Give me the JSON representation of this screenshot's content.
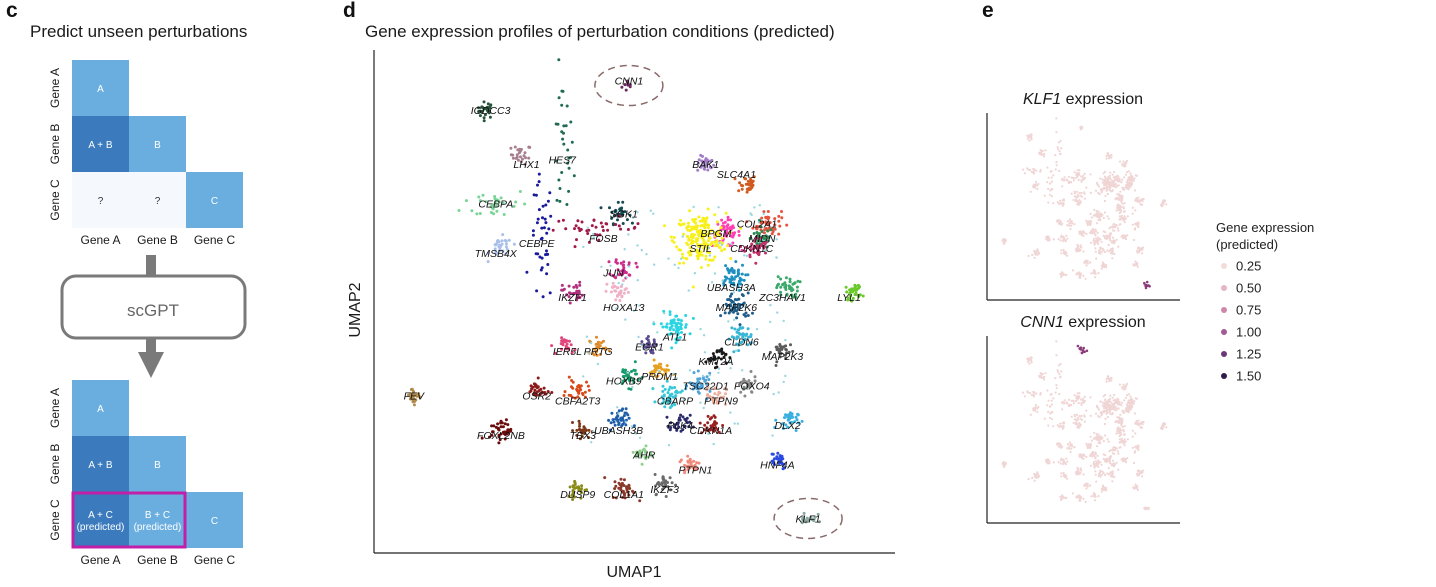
{
  "panels": {
    "c": {
      "letter": "c",
      "title": "Predict unseen perturbations",
      "model_label": "scGPT",
      "colors": {
        "dark": "#3b7bbd",
        "light": "#6aaee0",
        "empty": "#f5f9fe",
        "highlight": "#c21fa8"
      },
      "top_grid": {
        "row_labels": [
          "Gene A",
          "Gene B",
          "Gene C"
        ],
        "col_labels": [
          "Gene A",
          "Gene B",
          "Gene C"
        ],
        "cells": [
          {
            "row": 0,
            "col": 0,
            "text": "A",
            "style": "light"
          },
          {
            "row": 1,
            "col": 0,
            "text": "A + B",
            "style": "dark"
          },
          {
            "row": 1,
            "col": 1,
            "text": "B",
            "style": "light"
          },
          {
            "row": 2,
            "col": 0,
            "text": "?",
            "style": "empty"
          },
          {
            "row": 2,
            "col": 1,
            "text": "?",
            "style": "empty"
          },
          {
            "row": 2,
            "col": 2,
            "text": "C",
            "style": "light"
          }
        ]
      },
      "bottom_grid": {
        "row_labels": [
          "Gene A",
          "Gene B",
          "Gene C"
        ],
        "col_labels": [
          "Gene A",
          "Gene B",
          "Gene C"
        ],
        "cells": [
          {
            "row": 0,
            "col": 0,
            "text": "A",
            "style": "light"
          },
          {
            "row": 1,
            "col": 0,
            "text": "A + B",
            "style": "dark"
          },
          {
            "row": 1,
            "col": 1,
            "text": "B",
            "style": "light"
          },
          {
            "row": 2,
            "col": 0,
            "text": "A + C",
            "text2": "(predicted)",
            "style": "dark"
          },
          {
            "row": 2,
            "col": 1,
            "text": "B + C",
            "text2": "(predicted)",
            "style": "light"
          },
          {
            "row": 2,
            "col": 2,
            "text": "C",
            "style": "light"
          }
        ]
      }
    },
    "d": {
      "letter": "d"
    },
    "e": {
      "letter": "e"
    }
  },
  "chart_data": [
    {
      "type": "scatter",
      "title": "Gene expression profiles of perturbation conditions (predicted)",
      "xlabel": "UMAP1",
      "ylabel": "UMAP2",
      "xlim": [
        0,
        100
      ],
      "ylim": [
        0,
        100
      ],
      "grid": false,
      "clusters": [
        {
          "name": "CNN1",
          "x": 49,
          "y": 94,
          "spread": 1.2,
          "n": 10,
          "color": "#6b2a5e",
          "circled": true
        },
        {
          "name": "IGDCC3",
          "x": 21,
          "y": 89,
          "spread": 1.5,
          "n": 25,
          "color": "#27553a"
        },
        {
          "name": "LHX1",
          "x": 28,
          "y": 80,
          "spread": 1.8,
          "n": 25,
          "color": "#a77f8f"
        },
        {
          "name": "HES7",
          "x": 36,
          "y": 80,
          "spread": 1.8,
          "n": 30,
          "color": "#1f6b55",
          "elong": [
            2,
            14
          ]
        },
        {
          "name": "BAK1",
          "x": 64,
          "y": 78,
          "spread": 1.5,
          "n": 25,
          "color": "#a17cc9"
        },
        {
          "name": "SLC4A1",
          "x": 72,
          "y": 74,
          "spread": 1.8,
          "n": 30,
          "color": "#d05a1f"
        },
        {
          "name": "CEBPA",
          "x": 23,
          "y": 70,
          "spread": 2.0,
          "n": 30,
          "color": "#7ad495",
          "elong": [
            6,
            3
          ]
        },
        {
          "name": "SGK1",
          "x": 47,
          "y": 68,
          "spread": 1.8,
          "n": 30,
          "color": "#154a52"
        },
        {
          "name": "COL2A1",
          "x": 76,
          "y": 66,
          "spread": 2.5,
          "n": 50,
          "color": "#e5533d"
        },
        {
          "name": "FOSB",
          "x": 43,
          "y": 65,
          "spread": 2.0,
          "n": 40,
          "color": "#a01a4a",
          "elong": [
            8,
            2
          ]
        },
        {
          "name": "BPGM",
          "x": 68,
          "y": 64,
          "spread": 2.5,
          "n": 50,
          "color": "#ff3fb4"
        },
        {
          "name": "MIDN",
          "x": 75,
          "y": 63,
          "spread": 2.0,
          "n": 40,
          "color": "#2e8b57"
        },
        {
          "name": "CEBPE",
          "x": 32,
          "y": 62,
          "spread": 1.5,
          "n": 40,
          "color": "#1a1a9c",
          "elong": [
            2,
            12
          ]
        },
        {
          "name": "TMSB4X",
          "x": 24,
          "y": 61,
          "spread": 2.0,
          "n": 30,
          "color": "#a8c0ea"
        },
        {
          "name": "STIL",
          "x": 63,
          "y": 63,
          "spread": 4.5,
          "n": 200,
          "color": "#f7f01a"
        },
        {
          "name": "CDKN1C",
          "x": 74,
          "y": 61,
          "spread": 2.0,
          "n": 40,
          "color": "#c42f6a"
        },
        {
          "name": "JUN",
          "x": 48,
          "y": 57,
          "spread": 2.0,
          "n": 30,
          "color": "#cc2c8a"
        },
        {
          "name": "UBASH3A",
          "x": 69,
          "y": 55,
          "spread": 2.5,
          "n": 50,
          "color": "#1e90c0"
        },
        {
          "name": "ZC3HAV1",
          "x": 80,
          "y": 53,
          "spread": 2.0,
          "n": 40,
          "color": "#3aa86a"
        },
        {
          "name": "IKZF1",
          "x": 38,
          "y": 52,
          "spread": 1.8,
          "n": 30,
          "color": "#b0307f"
        },
        {
          "name": "HOXA13",
          "x": 47,
          "y": 52,
          "spread": 2.0,
          "n": 30,
          "color": "#f0b0c6"
        },
        {
          "name": "MAP2K6",
          "x": 70,
          "y": 49,
          "spread": 2.5,
          "n": 50,
          "color": "#1f5e8a"
        },
        {
          "name": "LYL1",
          "x": 93,
          "y": 52,
          "spread": 1.5,
          "n": 30,
          "color": "#69c92a"
        },
        {
          "name": "ATL1",
          "x": 58,
          "y": 45,
          "spread": 2.5,
          "n": 60,
          "color": "#2ad4e3"
        },
        {
          "name": "CLDN6",
          "x": 71,
          "y": 43,
          "spread": 2.0,
          "n": 40,
          "color": "#3ab6d6"
        },
        {
          "name": "IER5L",
          "x": 37,
          "y": 41,
          "spread": 1.5,
          "n": 25,
          "color": "#e0457b"
        },
        {
          "name": "PRTG",
          "x": 43,
          "y": 41,
          "spread": 1.5,
          "n": 25,
          "color": "#dd8a2a"
        },
        {
          "name": "EGR1",
          "x": 53,
          "y": 41,
          "spread": 1.5,
          "n": 25,
          "color": "#5a4b8f"
        },
        {
          "name": "MAP2K3",
          "x": 79,
          "y": 40,
          "spread": 1.8,
          "n": 30,
          "color": "#5a5a5a"
        },
        {
          "name": "KMT2A",
          "x": 66,
          "y": 39,
          "spread": 1.8,
          "n": 30,
          "color": "#1a1a1a"
        },
        {
          "name": "PRDM1",
          "x": 55,
          "y": 36,
          "spread": 1.8,
          "n": 30,
          "color": "#e6a020"
        },
        {
          "name": "HOXB9",
          "x": 49,
          "y": 35,
          "spread": 2.0,
          "n": 30,
          "color": "#169b6b"
        },
        {
          "name": "TSC22D1",
          "x": 63,
          "y": 33,
          "spread": 2.0,
          "n": 40,
          "color": "#4fa3d9"
        },
        {
          "name": "FOXO4",
          "x": 72,
          "y": 33,
          "spread": 1.8,
          "n": 30,
          "color": "#888888"
        },
        {
          "name": "OSR2",
          "x": 31,
          "y": 32,
          "spread": 1.8,
          "n": 30,
          "color": "#8b1a1a"
        },
        {
          "name": "CBFA2T3",
          "x": 39,
          "y": 32,
          "spread": 2.0,
          "n": 30,
          "color": "#d94a1a"
        },
        {
          "name": "CBARP",
          "x": 57,
          "y": 31,
          "spread": 2.0,
          "n": 40,
          "color": "#36c7d8"
        },
        {
          "name": "PTPN9",
          "x": 66,
          "y": 31,
          "spread": 1.8,
          "n": 30,
          "color": "#efb0a0"
        },
        {
          "name": "FEV",
          "x": 7,
          "y": 31,
          "spread": 1.5,
          "n": 25,
          "color": "#b08a4a"
        },
        {
          "name": "DLX2",
          "x": 80,
          "y": 26,
          "spread": 1.8,
          "n": 30,
          "color": "#3ab0e0"
        },
        {
          "name": "UBASH3B",
          "x": 47,
          "y": 26,
          "spread": 2.0,
          "n": 40,
          "color": "#1f5eab"
        },
        {
          "name": "PLK4",
          "x": 59,
          "y": 25,
          "spread": 1.8,
          "n": 30,
          "color": "#2a2a6a"
        },
        {
          "name": "CDKN1A",
          "x": 65,
          "y": 25,
          "spread": 2.0,
          "n": 30,
          "color": "#9a2020"
        },
        {
          "name": "TBX3",
          "x": 40,
          "y": 24,
          "spread": 1.5,
          "n": 25,
          "color": "#7a3a1a"
        },
        {
          "name": "FOXL2NB",
          "x": 24,
          "y": 24,
          "spread": 2.0,
          "n": 40,
          "color": "#6a0d0d"
        },
        {
          "name": "AHR",
          "x": 52,
          "y": 19,
          "spread": 1.5,
          "n": 25,
          "color": "#8fd18f"
        },
        {
          "name": "HNF4A",
          "x": 78,
          "y": 18,
          "spread": 1.8,
          "n": 30,
          "color": "#2a4ae0"
        },
        {
          "name": "PTPN1",
          "x": 61,
          "y": 17,
          "spread": 1.8,
          "n": 30,
          "color": "#f08a7a"
        },
        {
          "name": "IKZF3",
          "x": 56,
          "y": 13,
          "spread": 1.8,
          "n": 30,
          "color": "#6a6a6a"
        },
        {
          "name": "COL1A1",
          "x": 48,
          "y": 12,
          "spread": 2.0,
          "n": 35,
          "color": "#8a3a2a"
        },
        {
          "name": "DUSP9",
          "x": 39,
          "y": 12,
          "spread": 1.8,
          "n": 30,
          "color": "#8a8a1a"
        },
        {
          "name": "KLF1",
          "x": 84,
          "y": 6,
          "spread": 1.5,
          "n": 20,
          "color": "#8aa8a0",
          "circled": true
        }
      ],
      "labels": [
        {
          "text": "CNN1",
          "x": 49,
          "y": 95
        },
        {
          "text": "IGDCC3",
          "x": 22,
          "y": 89
        },
        {
          "text": "LHX1",
          "x": 29,
          "y": 78
        },
        {
          "text": "HES7",
          "x": 36,
          "y": 79
        },
        {
          "text": "BAK1",
          "x": 64,
          "y": 78
        },
        {
          "text": "SLC4A1",
          "x": 70,
          "y": 76
        },
        {
          "text": "CEBPA",
          "x": 23,
          "y": 70
        },
        {
          "text": "SGK1",
          "x": 48,
          "y": 68
        },
        {
          "text": "COL2A1",
          "x": 74,
          "y": 66
        },
        {
          "text": "BPGM",
          "x": 66,
          "y": 64
        },
        {
          "text": "MIDN",
          "x": 75,
          "y": 63
        },
        {
          "text": "FOSB",
          "x": 44,
          "y": 63
        },
        {
          "text": "CEBPE",
          "x": 31,
          "y": 62
        },
        {
          "text": "STIL",
          "x": 63,
          "y": 61
        },
        {
          "text": "CDKN1C",
          "x": 73,
          "y": 61
        },
        {
          "text": "TMSB4X",
          "x": 23,
          "y": 60
        },
        {
          "text": "JUN",
          "x": 46,
          "y": 56
        },
        {
          "text": "UBASH3A",
          "x": 69,
          "y": 53
        },
        {
          "text": "ZC3HAV1",
          "x": 79,
          "y": 51
        },
        {
          "text": "IKZF1",
          "x": 38,
          "y": 51
        },
        {
          "text": "LYL1",
          "x": 92,
          "y": 51
        },
        {
          "text": "HOXA13",
          "x": 48,
          "y": 49
        },
        {
          "text": "MAP2K6",
          "x": 70,
          "y": 49
        },
        {
          "text": "ATL1",
          "x": 58,
          "y": 43
        },
        {
          "text": "CLDN6",
          "x": 71,
          "y": 42
        },
        {
          "text": "IER5L",
          "x": 37,
          "y": 40
        },
        {
          "text": "PRTG",
          "x": 43,
          "y": 40
        },
        {
          "text": "EGR1",
          "x": 53,
          "y": 41
        },
        {
          "text": "MAP2K3",
          "x": 79,
          "y": 39
        },
        {
          "text": "KMT2A",
          "x": 66,
          "y": 38
        },
        {
          "text": "PRDM1",
          "x": 55,
          "y": 35
        },
        {
          "text": "HOXB9",
          "x": 48,
          "y": 34
        },
        {
          "text": "TSC22D1",
          "x": 64,
          "y": 33
        },
        {
          "text": "FOXO4",
          "x": 73,
          "y": 33
        },
        {
          "text": "OSR2",
          "x": 31,
          "y": 31
        },
        {
          "text": "CBFA2T3",
          "x": 39,
          "y": 30
        },
        {
          "text": "CBARP",
          "x": 58,
          "y": 30
        },
        {
          "text": "PTPN9",
          "x": 67,
          "y": 30
        },
        {
          "text": "FEV",
          "x": 7,
          "y": 31
        },
        {
          "text": "DLX2",
          "x": 80,
          "y": 25
        },
        {
          "text": "UBASH3B",
          "x": 47,
          "y": 24
        },
        {
          "text": "PLK4",
          "x": 59,
          "y": 25
        },
        {
          "text": "CDKN1A",
          "x": 65,
          "y": 24
        },
        {
          "text": "TBX3",
          "x": 40,
          "y": 23
        },
        {
          "text": "FOXL2NB",
          "x": 24,
          "y": 23
        },
        {
          "text": "AHR",
          "x": 52,
          "y": 19
        },
        {
          "text": "HNF4A",
          "x": 78,
          "y": 17
        },
        {
          "text": "PTPN1",
          "x": 62,
          "y": 16
        },
        {
          "text": "IKZF3",
          "x": 56,
          "y": 12
        },
        {
          "text": "COL1A1",
          "x": 48,
          "y": 11
        },
        {
          "text": "DUSP9",
          "x": 39,
          "y": 11
        },
        {
          "text": "KLF1",
          "x": 84,
          "y": 6
        }
      ]
    },
    {
      "type": "scatter",
      "title_gene": "KLF1",
      "title_suffix": " expression",
      "highlight": {
        "x": 84,
        "y": 6,
        "color": "#8a3a7a"
      }
    },
    {
      "type": "scatter",
      "title_gene": "CNN1",
      "title_suffix": " expression",
      "highlight": {
        "x": 49,
        "y": 94,
        "color": "#8a3a7a"
      }
    }
  ],
  "legend": {
    "title_line1": "Gene expression",
    "title_line2": "(predicted)",
    "items": [
      {
        "label": "0.25",
        "color": "#f2dcd8"
      },
      {
        "label": "0.50",
        "color": "#e6b6c4"
      },
      {
        "label": "0.75",
        "color": "#cf86ab"
      },
      {
        "label": "1.00",
        "color": "#a45a96"
      },
      {
        "label": "1.25",
        "color": "#6a3978"
      },
      {
        "label": "1.50",
        "color": "#2e1e48"
      }
    ]
  }
}
